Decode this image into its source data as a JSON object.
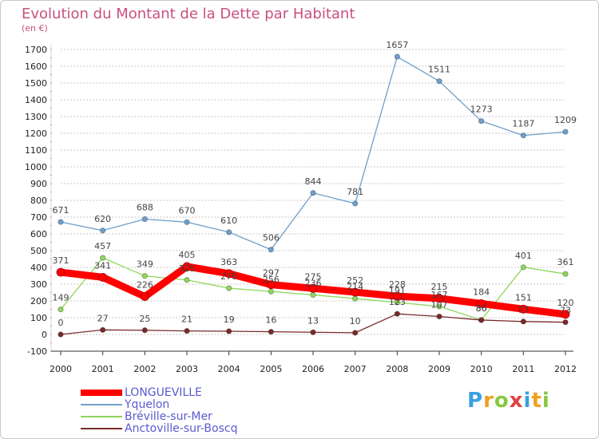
{
  "chart_data": {
    "type": "line",
    "title": "Evolution du Montant de la Dette par Habitant",
    "subtitle": "(en €)",
    "xlabel": "",
    "ylabel": "",
    "categories": [
      "2000",
      "2001",
      "2002",
      "2003",
      "2004",
      "2005",
      "2006",
      "2007",
      "2008",
      "2009",
      "2010",
      "2011",
      "2012"
    ],
    "ylim": [
      -100,
      1700
    ],
    "yticks": [
      -100,
      0,
      100,
      200,
      300,
      400,
      500,
      600,
      700,
      800,
      900,
      1000,
      1100,
      1200,
      1300,
      1400,
      1500,
      1600,
      1700
    ],
    "grid": "horizontal dotted",
    "legend_position": "bottom-left",
    "series": [
      {
        "name": "Yquelon",
        "color": "#6fa0cc",
        "values": [
          671,
          620,
          688,
          670,
          610,
          506,
          844,
          781,
          1657,
          1511,
          1273,
          1187,
          1209
        ]
      },
      {
        "name": "Bréville-sur-Mer",
        "color": "#8ed65a",
        "values": [
          149,
          457,
          349,
          325,
          276,
          256,
          236,
          214,
          191,
          167,
          86,
          401,
          361
        ]
      },
      {
        "name": "Anctoville-sur-Boscq",
        "color": "#7a2a2a",
        "values": [
          0,
          27,
          25,
          21,
          19,
          16,
          13,
          10,
          123,
          107,
          86,
          77,
          73
        ]
      },
      {
        "name": "LONGUEVILLE",
        "color": "#ff0000",
        "values": [
          371,
          341,
          226,
          405,
          363,
          297,
          275,
          252,
          228,
          215,
          184,
          151,
          120
        ]
      }
    ]
  },
  "branding": {
    "logo": [
      "P",
      "r",
      "o",
      "x",
      "i",
      "t",
      "i"
    ]
  }
}
